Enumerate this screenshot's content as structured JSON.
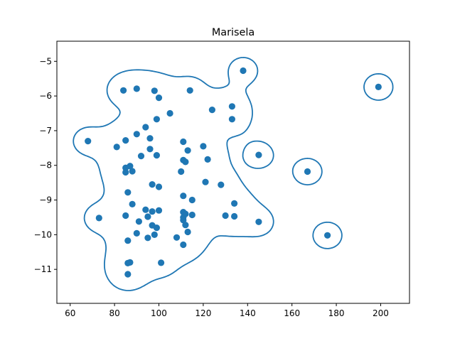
{
  "chart_data": {
    "type": "scatter",
    "title": "Marisela",
    "xlabel": "",
    "ylabel": "",
    "xlim": [
      54,
      213
    ],
    "ylim": [
      -11.98,
      -4.42
    ],
    "xticks": [
      60,
      80,
      100,
      120,
      140,
      160,
      180,
      200
    ],
    "yticks": [
      -11,
      -10,
      -9,
      -8,
      -7,
      -6,
      -5
    ],
    "grid": false,
    "legend": "none",
    "colors": {
      "points": "#1f77b4",
      "contour": "#1f77b4",
      "frame": "#000000"
    },
    "series": [
      {
        "points": [
          [
            68,
            -7.3
          ],
          [
            73,
            -9.52
          ],
          [
            81,
            -7.47
          ],
          [
            84,
            -5.84
          ],
          [
            85,
            -7.28
          ],
          [
            85,
            -8.07
          ],
          [
            85,
            -8.2
          ],
          [
            85,
            -9.45
          ],
          [
            86,
            -10.17
          ],
          [
            86,
            -10.82
          ],
          [
            86,
            -11.14
          ],
          [
            86,
            -8.78
          ],
          [
            87,
            -8.02
          ],
          [
            87,
            -10.8
          ],
          [
            88,
            -8.17
          ],
          [
            88,
            -9.12
          ],
          [
            90,
            -5.79
          ],
          [
            90,
            -7.1
          ],
          [
            90,
            -9.96
          ],
          [
            91,
            -9.62
          ],
          [
            92,
            -7.73
          ],
          [
            94,
            -6.9
          ],
          [
            94,
            -9.28
          ],
          [
            95,
            -9.48
          ],
          [
            95,
            -10.09
          ],
          [
            96,
            -7.22
          ],
          [
            96,
            -7.53
          ],
          [
            97,
            -9.33
          ],
          [
            97,
            -9.73
          ],
          [
            97,
            -8.55
          ],
          [
            98,
            -5.85
          ],
          [
            98,
            -10
          ],
          [
            99,
            -6.67
          ],
          [
            99,
            -7.71
          ],
          [
            99,
            -9.8
          ],
          [
            100,
            -6.05
          ],
          [
            100,
            -8.62
          ],
          [
            100,
            -9.3
          ],
          [
            101,
            -10.81
          ],
          [
            105,
            -6.5
          ],
          [
            108,
            -10.08
          ],
          [
            110,
            -8.18
          ],
          [
            111,
            -9.35
          ],
          [
            111,
            -9.5
          ],
          [
            111,
            -9.58
          ],
          [
            111,
            -10.29
          ],
          [
            111,
            -7.32
          ],
          [
            111,
            -7.85
          ],
          [
            111,
            -8.88
          ],
          [
            112,
            -7.9
          ],
          [
            112,
            -9.4
          ],
          [
            112,
            -9.72
          ],
          [
            113,
            -9.92
          ],
          [
            113,
            -7.57
          ],
          [
            114,
            -5.84
          ],
          [
            115,
            -9
          ],
          [
            115,
            -9.43
          ],
          [
            120,
            -7.45
          ],
          [
            121,
            -8.48
          ],
          [
            122,
            -7.83
          ],
          [
            124,
            -6.4
          ],
          [
            128,
            -8.56
          ],
          [
            130,
            -9.45
          ],
          [
            133,
            -6.3
          ],
          [
            133,
            -6.67
          ],
          [
            134,
            -9.1
          ],
          [
            134,
            -9.47
          ],
          [
            138,
            -5.27
          ],
          [
            145,
            -7.7
          ],
          [
            145,
            -9.63
          ],
          [
            167,
            -8.18
          ],
          [
            176,
            -10.02
          ],
          [
            199,
            -5.74
          ]
        ]
      }
    ]
  }
}
